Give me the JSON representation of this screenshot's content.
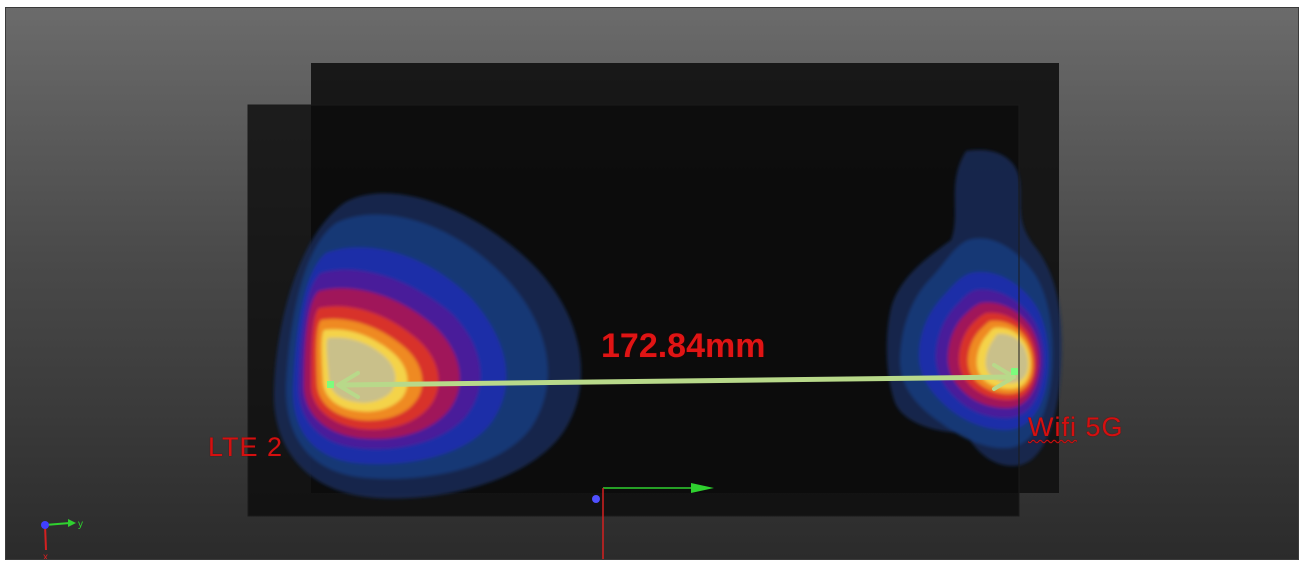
{
  "measurement": {
    "distance_label": "172.84mm"
  },
  "antennas": {
    "left_label": "LTE 2",
    "right_label_part1": "Wifi",
    "right_label_part2": " 5G"
  },
  "axis_triad": {
    "y_label": "y",
    "x_label": "x"
  },
  "colors": {
    "label_red": "#d41010",
    "arrow_green": "#b8d98a",
    "endpoint_green": "#7dfc7d",
    "axis_green": "#2fd12f",
    "axis_red": "#d42020",
    "axis_blue": "#4040ff"
  }
}
